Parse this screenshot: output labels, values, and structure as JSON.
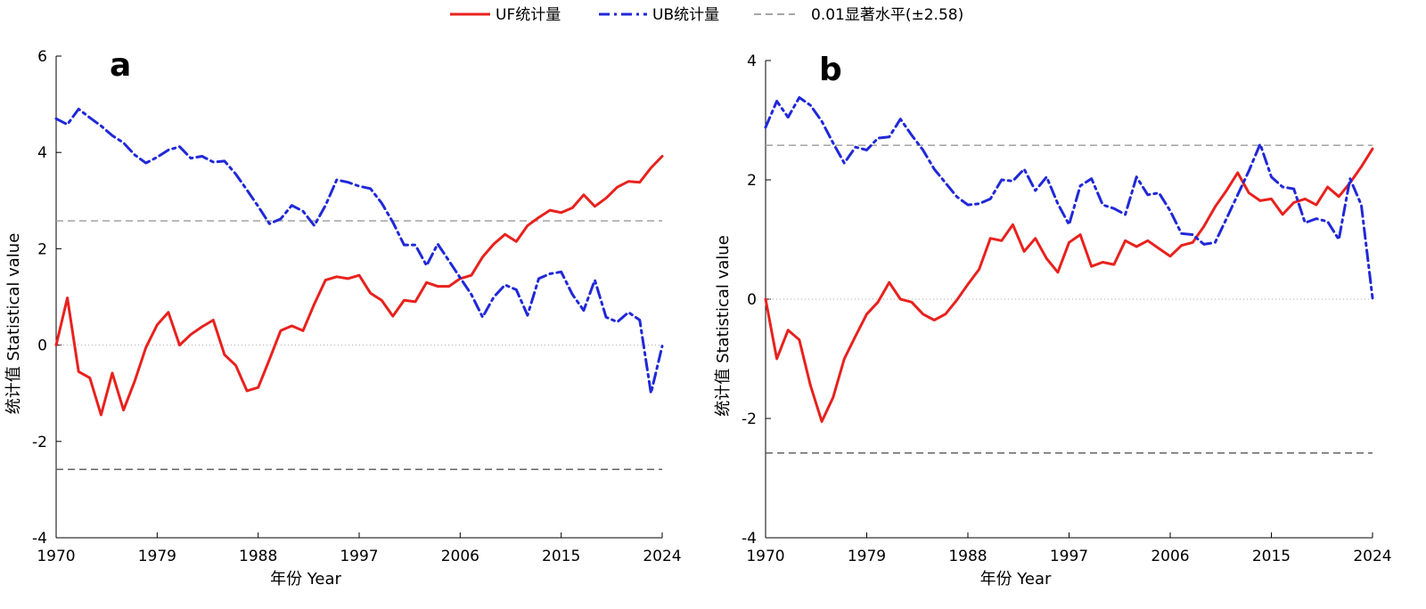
{
  "legend": {
    "placement": "top-center",
    "entries": [
      {
        "label": "UF统计量",
        "color": "#e8211d",
        "style": "solid"
      },
      {
        "label": "UB统计量",
        "color": "#2028d8",
        "style": "dash-dot"
      },
      {
        "label": "0.01显著水平(±2.58)",
        "color": "#888888",
        "style": "dashed"
      }
    ]
  },
  "chart_data": [
    {
      "type": "line",
      "panel_label": "a",
      "xlabel": "年份 Year",
      "ylabel": "统计值 Statistical value",
      "xlim": [
        1970,
        2024
      ],
      "ylim": [
        -4,
        6
      ],
      "xticks": [
        "1970",
        "1979",
        "1988",
        "1997",
        "2006",
        "2015",
        "2024"
      ],
      "yticks": [
        "-4",
        "-2",
        "0",
        "2",
        "4",
        "6"
      ],
      "reference_lines": [
        2.58,
        -2.58
      ],
      "zero_line": 0,
      "x": [
        1970,
        1971,
        1972,
        1973,
        1974,
        1975,
        1976,
        1977,
        1978,
        1979,
        1980,
        1981,
        1982,
        1983,
        1984,
        1985,
        1986,
        1987,
        1988,
        1989,
        1990,
        1991,
        1992,
        1993,
        1994,
        1995,
        1996,
        1997,
        1998,
        1999,
        2000,
        2001,
        2002,
        2003,
        2004,
        2005,
        2006,
        2007,
        2008,
        2009,
        2010,
        2011,
        2012,
        2013,
        2014,
        2015,
        2016,
        2017,
        2018,
        2019,
        2020,
        2021,
        2022,
        2023,
        2024
      ],
      "series": [
        {
          "name": "UF统计量",
          "color": "#e8211d",
          "values": [
            0,
            0.98,
            -0.55,
            -0.68,
            -1.45,
            -0.58,
            -1.35,
            -0.75,
            -0.05,
            0.42,
            0.68,
            0.0,
            0.22,
            0.38,
            0.52,
            -0.2,
            -0.42,
            -0.95,
            -0.88,
            -0.3,
            0.3,
            0.4,
            0.3,
            0.85,
            1.35,
            1.42,
            1.38,
            1.45,
            1.08,
            0.93,
            0.6,
            0.93,
            0.9,
            1.3,
            1.22,
            1.22,
            1.38,
            1.45,
            1.83,
            2.1,
            2.3,
            2.15,
            2.48,
            2.65,
            2.8,
            2.75,
            2.85,
            3.12,
            2.88,
            3.05,
            3.28,
            3.4,
            3.38,
            3.68,
            3.92
          ]
        },
        {
          "name": "UB统计量",
          "color": "#2028d8",
          "values": [
            4.7,
            4.58,
            4.9,
            4.72,
            4.55,
            4.35,
            4.2,
            3.95,
            3.78,
            3.9,
            4.05,
            4.12,
            3.88,
            3.92,
            3.8,
            3.82,
            3.55,
            3.22,
            2.88,
            2.52,
            2.62,
            2.9,
            2.78,
            2.48,
            2.9,
            3.43,
            3.38,
            3.3,
            3.25,
            2.95,
            2.55,
            2.08,
            2.08,
            1.65,
            2.1,
            1.75,
            1.4,
            1.05,
            0.58,
            1.0,
            1.25,
            1.15,
            0.62,
            1.38,
            1.48,
            1.52,
            1.05,
            0.72,
            1.35,
            0.58,
            0.48,
            0.68,
            0.52,
            -1.0,
            -0.02
          ]
        }
      ]
    },
    {
      "type": "line",
      "panel_label": "b",
      "xlabel": "年份 Year",
      "ylabel": "统计值 Statistical value",
      "xlim": [
        1970,
        2024
      ],
      "ylim": [
        -4,
        4
      ],
      "xticks": [
        "1970",
        "1979",
        "1988",
        "1997",
        "2006",
        "2015",
        "2024"
      ],
      "yticks": [
        "-4",
        "-2",
        "0",
        "2",
        "4"
      ],
      "reference_lines": [
        2.58,
        -2.58
      ],
      "zero_line": 0,
      "x": [
        1970,
        1971,
        1972,
        1973,
        1974,
        1975,
        1976,
        1977,
        1978,
        1979,
        1980,
        1981,
        1982,
        1983,
        1984,
        1985,
        1986,
        1987,
        1988,
        1989,
        1990,
        1991,
        1992,
        1993,
        1994,
        1995,
        1996,
        1997,
        1998,
        1999,
        2000,
        2001,
        2002,
        2003,
        2004,
        2005,
        2006,
        2007,
        2008,
        2009,
        2010,
        2011,
        2012,
        2013,
        2014,
        2015,
        2016,
        2017,
        2018,
        2019,
        2020,
        2021,
        2022,
        2023,
        2024
      ],
      "series": [
        {
          "name": "UF统计量",
          "color": "#e8211d",
          "values": [
            0,
            -1.0,
            -0.52,
            -0.68,
            -1.45,
            -2.05,
            -1.65,
            -1.0,
            -0.62,
            -0.25,
            -0.05,
            0.28,
            0.0,
            -0.05,
            -0.25,
            -0.35,
            -0.25,
            -0.02,
            0.25,
            0.5,
            1.02,
            0.98,
            1.25,
            0.8,
            1.02,
            0.68,
            0.45,
            0.95,
            1.08,
            0.55,
            0.62,
            0.58,
            0.98,
            0.88,
            0.98,
            0.85,
            0.72,
            0.9,
            0.95,
            1.22,
            1.55,
            1.82,
            2.12,
            1.78,
            1.65,
            1.68,
            1.42,
            1.62,
            1.68,
            1.58,
            1.88,
            1.72,
            1.95,
            2.22,
            2.52
          ]
        },
        {
          "name": "UB统计量",
          "color": "#2028d8",
          "values": [
            2.88,
            3.32,
            3.05,
            3.38,
            3.25,
            2.98,
            2.62,
            2.28,
            2.55,
            2.5,
            2.7,
            2.72,
            3.02,
            2.75,
            2.5,
            2.18,
            1.95,
            1.72,
            1.58,
            1.6,
            1.68,
            2.0,
            1.98,
            2.18,
            1.82,
            2.05,
            1.6,
            1.25,
            1.9,
            2.02,
            1.58,
            1.52,
            1.42,
            2.05,
            1.75,
            1.78,
            1.48,
            1.1,
            1.08,
            0.92,
            0.95,
            1.35,
            1.75,
            2.15,
            2.6,
            2.05,
            1.88,
            1.85,
            1.28,
            1.35,
            1.3,
            1.0,
            2.02,
            1.58,
            0.02
          ]
        }
      ]
    }
  ]
}
